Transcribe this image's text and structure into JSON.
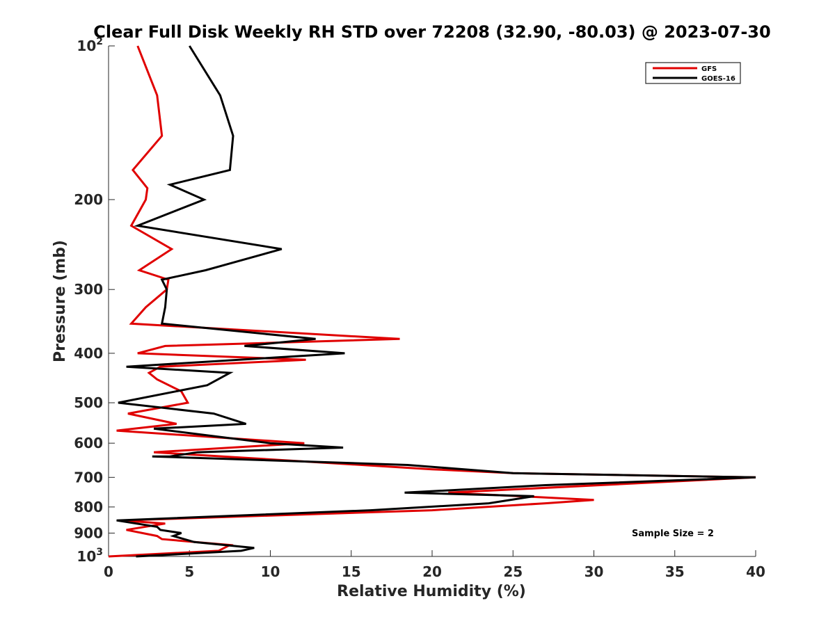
{
  "chart_data": {
    "type": "line",
    "title": "Clear Full Disk Weekly RH STD over 72208 (32.90, -80.03) @ 2023-07-30",
    "xlabel": "Relative Humidity (%)",
    "ylabel": "Pressure (mb)",
    "xlim": [
      0,
      40
    ],
    "ylim": [
      100,
      1000
    ],
    "yscale": "log",
    "y_reversed": true,
    "grid": false,
    "legend_position": "top-right",
    "x_ticks": [
      "0",
      "5",
      "10",
      "15",
      "20",
      "25",
      "30",
      "35",
      "40"
    ],
    "y_ticks": [
      {
        "value": 100,
        "base": "10",
        "exp": "2"
      },
      {
        "value": 200,
        "label": "200"
      },
      {
        "value": 300,
        "label": "300"
      },
      {
        "value": 400,
        "label": "400"
      },
      {
        "value": 500,
        "label": "500"
      },
      {
        "value": 600,
        "label": "600"
      },
      {
        "value": 700,
        "label": "700"
      },
      {
        "value": 800,
        "label": "800"
      },
      {
        "value": 900,
        "label": "900"
      },
      {
        "value": 1000,
        "base": "10",
        "exp": "3"
      }
    ],
    "annotation": "Sample Size = 2",
    "series": [
      {
        "name": "GFS",
        "color": "#e00000",
        "points": [
          [
            1.8,
            100
          ],
          [
            3.0,
            125
          ],
          [
            3.3,
            150
          ],
          [
            1.5,
            175
          ],
          [
            2.4,
            190
          ],
          [
            2.3,
            200
          ],
          [
            1.4,
            225
          ],
          [
            3.9,
            250
          ],
          [
            1.9,
            275
          ],
          [
            3.7,
            287
          ],
          [
            3.6,
            300
          ],
          [
            2.3,
            325
          ],
          [
            1.4,
            350
          ],
          [
            18.0,
            375
          ],
          [
            3.5,
            387
          ],
          [
            1.8,
            400
          ],
          [
            12.2,
            412
          ],
          [
            3.2,
            425
          ],
          [
            2.5,
            437
          ],
          [
            3.0,
            450
          ],
          [
            4.5,
            475
          ],
          [
            4.9,
            500
          ],
          [
            1.2,
            525
          ],
          [
            4.2,
            550
          ],
          [
            0.5,
            567
          ],
          [
            12.1,
            600
          ],
          [
            2.8,
            625
          ],
          [
            20.0,
            675
          ],
          [
            25.0,
            687
          ],
          [
            40.0,
            700
          ],
          [
            21.0,
            750
          ],
          [
            30.0,
            775
          ],
          [
            27.0,
            787
          ],
          [
            20.0,
            812
          ],
          [
            0.8,
            850
          ],
          [
            3.5,
            862
          ],
          [
            1.1,
            887
          ],
          [
            3.0,
            912
          ],
          [
            3.3,
            925
          ],
          [
            7.5,
            950
          ],
          [
            6.8,
            975
          ],
          [
            0.0,
            1000
          ]
        ]
      },
      {
        "name": "GOES-16",
        "color": "#000000",
        "points": [
          [
            5.0,
            100
          ],
          [
            6.9,
            125
          ],
          [
            7.7,
            150
          ],
          [
            7.5,
            175
          ],
          [
            3.8,
            187
          ],
          [
            5.9,
            200
          ],
          [
            1.8,
            225
          ],
          [
            10.7,
            250
          ],
          [
            6.0,
            275
          ],
          [
            3.3,
            287
          ],
          [
            3.6,
            300
          ],
          [
            3.5,
            325
          ],
          [
            3.3,
            350
          ],
          [
            12.8,
            375
          ],
          [
            8.4,
            387
          ],
          [
            14.6,
            400
          ],
          [
            1.1,
            425
          ],
          [
            7.5,
            437
          ],
          [
            6.1,
            462
          ],
          [
            0.6,
            500
          ],
          [
            6.5,
            525
          ],
          [
            8.5,
            550
          ],
          [
            2.8,
            562
          ],
          [
            10.0,
            600
          ],
          [
            14.5,
            612
          ],
          [
            5.5,
            625
          ],
          [
            3.8,
            637
          ],
          [
            2.7,
            637
          ],
          [
            18.5,
            662
          ],
          [
            25.0,
            687
          ],
          [
            40.0,
            700
          ],
          [
            27.0,
            725
          ],
          [
            18.3,
            750
          ],
          [
            26.3,
            762
          ],
          [
            23.5,
            787
          ],
          [
            16.2,
            812
          ],
          [
            0.5,
            850
          ],
          [
            3.0,
            875
          ],
          [
            3.2,
            887
          ],
          [
            4.5,
            900
          ],
          [
            4.0,
            912
          ],
          [
            5.3,
            937
          ],
          [
            9.0,
            962
          ],
          [
            8.2,
            975
          ],
          [
            1.7,
            1000
          ]
        ]
      }
    ]
  }
}
